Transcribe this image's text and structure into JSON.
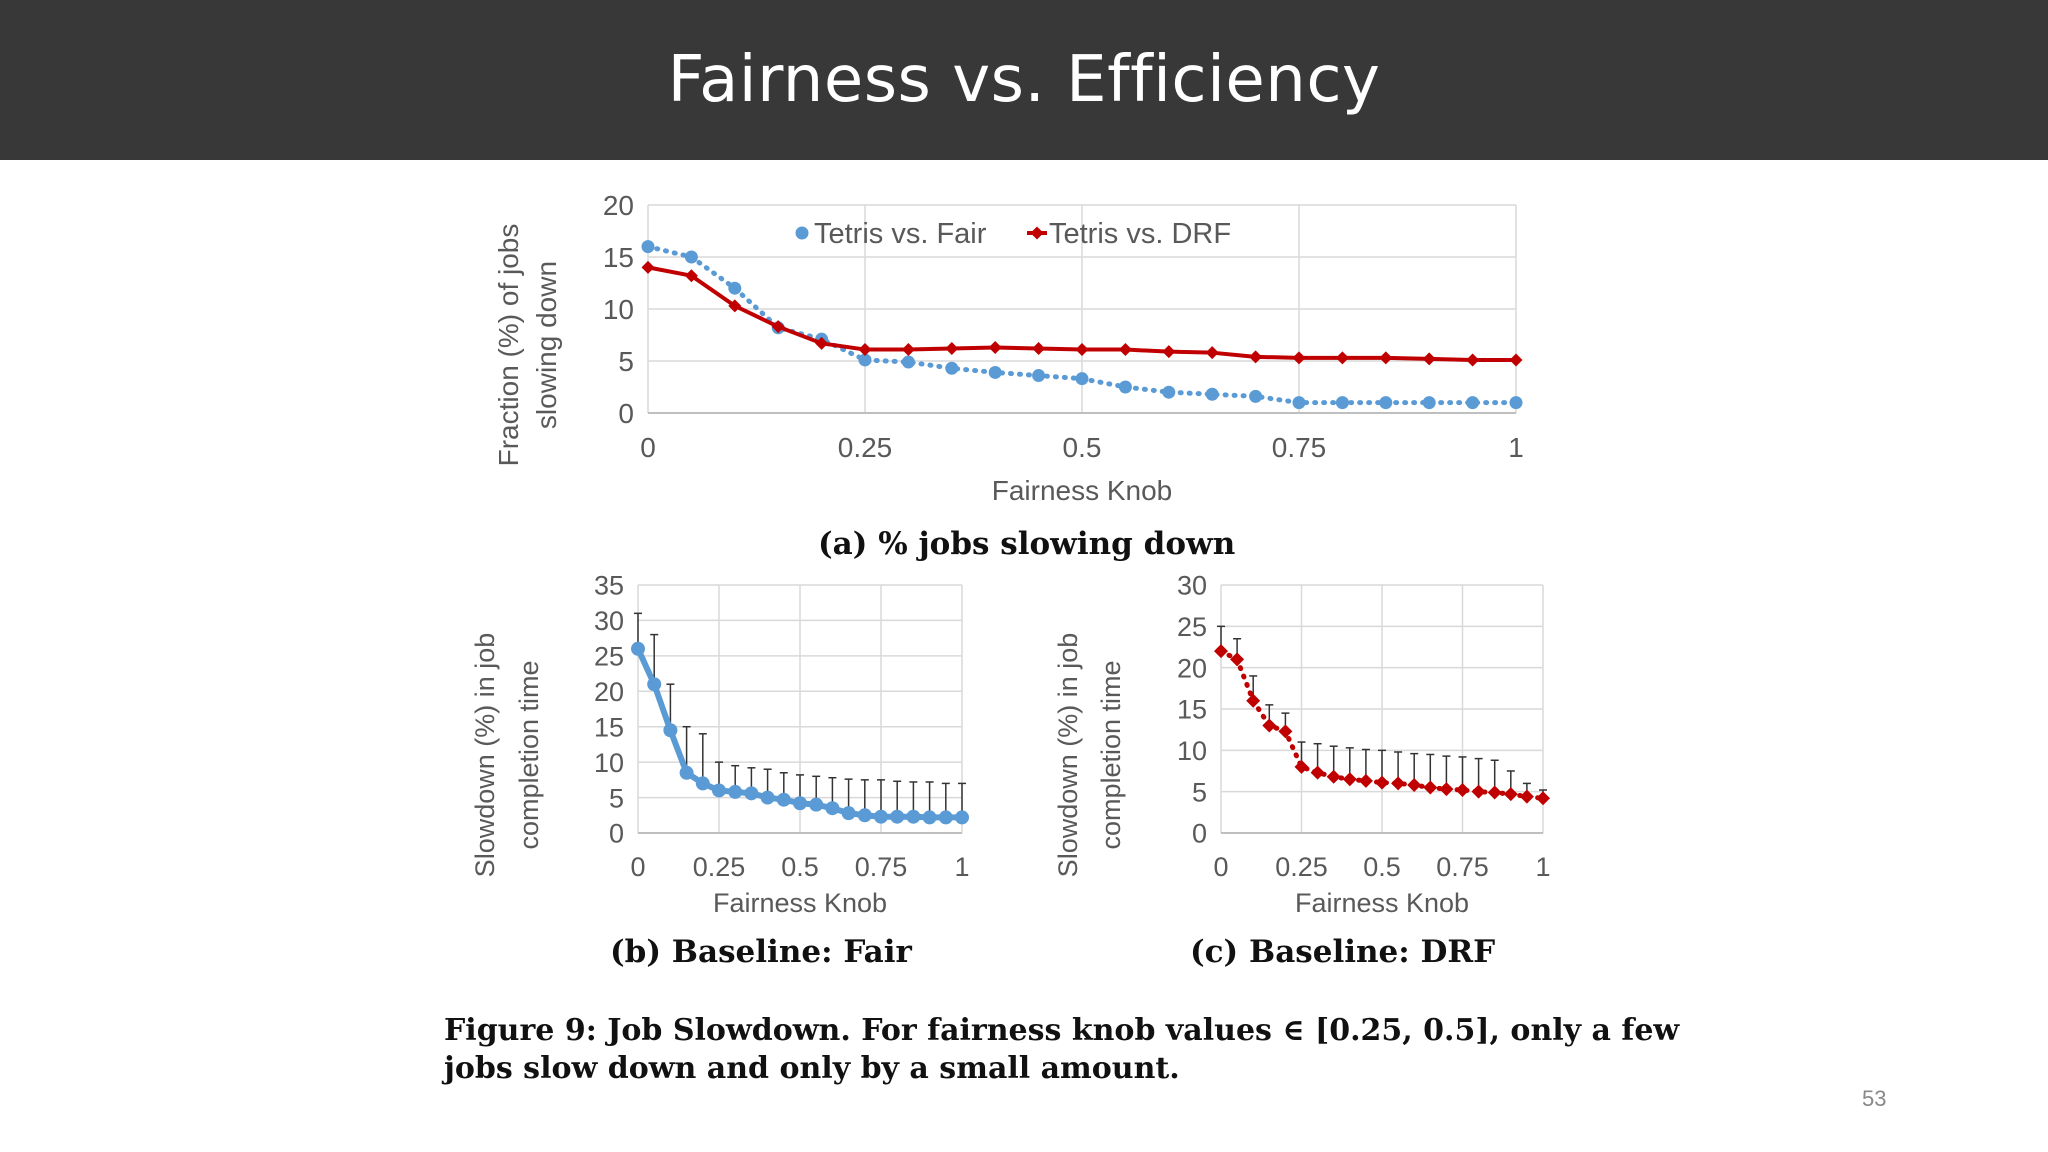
{
  "slide": {
    "title": "Fairness vs. Efficiency",
    "page_number": "53",
    "figure_caption": "Figure 9: Job Slowdown. For fairness knob values ∈ [0.25, 0.5], only a few jobs slow down and only by a small amount."
  },
  "colors": {
    "fair": "#5b9bd5",
    "drf": "#c00000",
    "grid": "#d9d9d9",
    "axis_text": "#595959"
  },
  "chart_data": [
    {
      "id": "a",
      "type": "line",
      "caption": "(a) % jobs slowing down",
      "xlabel": "Fairness Knob",
      "ylabel": [
        "Fraction (%) of jobs",
        "slowing down"
      ],
      "xlim": [
        0,
        1
      ],
      "ylim": [
        0,
        20
      ],
      "xticks": [
        0,
        0.25,
        0.5,
        0.75,
        1
      ],
      "xtick_labels": [
        "0",
        "0.25",
        "0.5",
        "0.75",
        "1"
      ],
      "yticks": [
        0,
        5,
        10,
        15,
        20
      ],
      "ytick_labels": [
        "0",
        "5",
        "10",
        "15",
        "20"
      ],
      "grid": true,
      "legend": "top-center",
      "x": [
        0,
        0.05,
        0.1,
        0.15,
        0.2,
        0.25,
        0.3,
        0.35,
        0.4,
        0.45,
        0.5,
        0.55,
        0.6,
        0.65,
        0.7,
        0.75,
        0.8,
        0.85,
        0.9,
        0.95,
        1
      ],
      "series": [
        {
          "name": "Tetris vs. Fair",
          "style": "dotted-circle",
          "values": [
            16,
            15,
            12,
            8.2,
            7.1,
            5.1,
            4.9,
            4.3,
            3.9,
            3.6,
            3.3,
            2.5,
            2.0,
            1.8,
            1.6,
            1.0,
            1.0,
            1.0,
            1.0,
            1.0,
            1.0
          ]
        },
        {
          "name": "Tetris vs. DRF",
          "style": "solid-diamond",
          "values": [
            14,
            13.2,
            10.3,
            8.3,
            6.7,
            6.1,
            6.1,
            6.2,
            6.3,
            6.2,
            6.1,
            6.1,
            5.9,
            5.8,
            5.4,
            5.3,
            5.3,
            5.3,
            5.2,
            5.1,
            5.1
          ]
        }
      ]
    },
    {
      "id": "b",
      "type": "line",
      "caption": "(b) Baseline: Fair",
      "xlabel": "Fairness Knob",
      "ylabel": [
        "Slowdown (%) in job",
        "completion time"
      ],
      "xlim": [
        0,
        1
      ],
      "ylim": [
        0,
        35
      ],
      "xticks": [
        0,
        0.25,
        0.5,
        0.75,
        1
      ],
      "xtick_labels": [
        "0",
        "0.25",
        "0.5",
        "0.75",
        "1"
      ],
      "yticks": [
        0,
        5,
        10,
        15,
        20,
        25,
        30,
        35
      ],
      "ytick_labels": [
        "0",
        "5",
        "10",
        "15",
        "20",
        "25",
        "30",
        "35"
      ],
      "grid": true,
      "x": [
        0,
        0.05,
        0.1,
        0.15,
        0.2,
        0.25,
        0.3,
        0.35,
        0.4,
        0.45,
        0.5,
        0.55,
        0.6,
        0.65,
        0.7,
        0.75,
        0.8,
        0.85,
        0.9,
        0.95,
        1
      ],
      "series": [
        {
          "name": "",
          "style": "solid-circle",
          "values": [
            26,
            21,
            14.5,
            8.5,
            7,
            6,
            5.8,
            5.6,
            5,
            4.7,
            4.2,
            4,
            3.5,
            2.8,
            2.5,
            2.3,
            2.3,
            2.3,
            2.2,
            2.2,
            2.2
          ],
          "error_top": [
            31,
            28,
            21,
            15,
            14,
            10,
            9.5,
            9.2,
            9,
            8.5,
            8.2,
            8,
            7.8,
            7.6,
            7.5,
            7.5,
            7.3,
            7.2,
            7.2,
            7,
            7
          ]
        }
      ]
    },
    {
      "id": "c",
      "type": "line",
      "caption": "(c) Baseline: DRF",
      "xlabel": "Fairness Knob",
      "ylabel": [
        "Slowdown (%) in job",
        "completion time"
      ],
      "xlim": [
        0,
        1
      ],
      "ylim": [
        0,
        30
      ],
      "xticks": [
        0,
        0.25,
        0.5,
        0.75,
        1
      ],
      "xtick_labels": [
        "0",
        "0.25",
        "0.5",
        "0.75",
        "1"
      ],
      "yticks": [
        0,
        5,
        10,
        15,
        20,
        25,
        30
      ],
      "ytick_labels": [
        "0",
        "5",
        "10",
        "15",
        "20",
        "25",
        "30"
      ],
      "grid": true,
      "x": [
        0,
        0.05,
        0.1,
        0.15,
        0.2,
        0.25,
        0.3,
        0.35,
        0.4,
        0.45,
        0.5,
        0.55,
        0.6,
        0.65,
        0.7,
        0.75,
        0.8,
        0.85,
        0.9,
        0.95,
        1
      ],
      "series": [
        {
          "name": "",
          "style": "dotted-diamond",
          "values": [
            22,
            21,
            16,
            13,
            12.3,
            8,
            7.3,
            6.8,
            6.5,
            6.3,
            6.1,
            6,
            5.8,
            5.5,
            5.3,
            5.2,
            5,
            4.9,
            4.7,
            4.4,
            4.2
          ],
          "error_top": [
            25,
            23.5,
            19,
            15.5,
            14.5,
            11,
            10.8,
            10.5,
            10.3,
            10.1,
            10,
            9.8,
            9.6,
            9.5,
            9.3,
            9.2,
            9,
            8.8,
            7.5,
            6,
            5.2
          ]
        }
      ]
    }
  ]
}
